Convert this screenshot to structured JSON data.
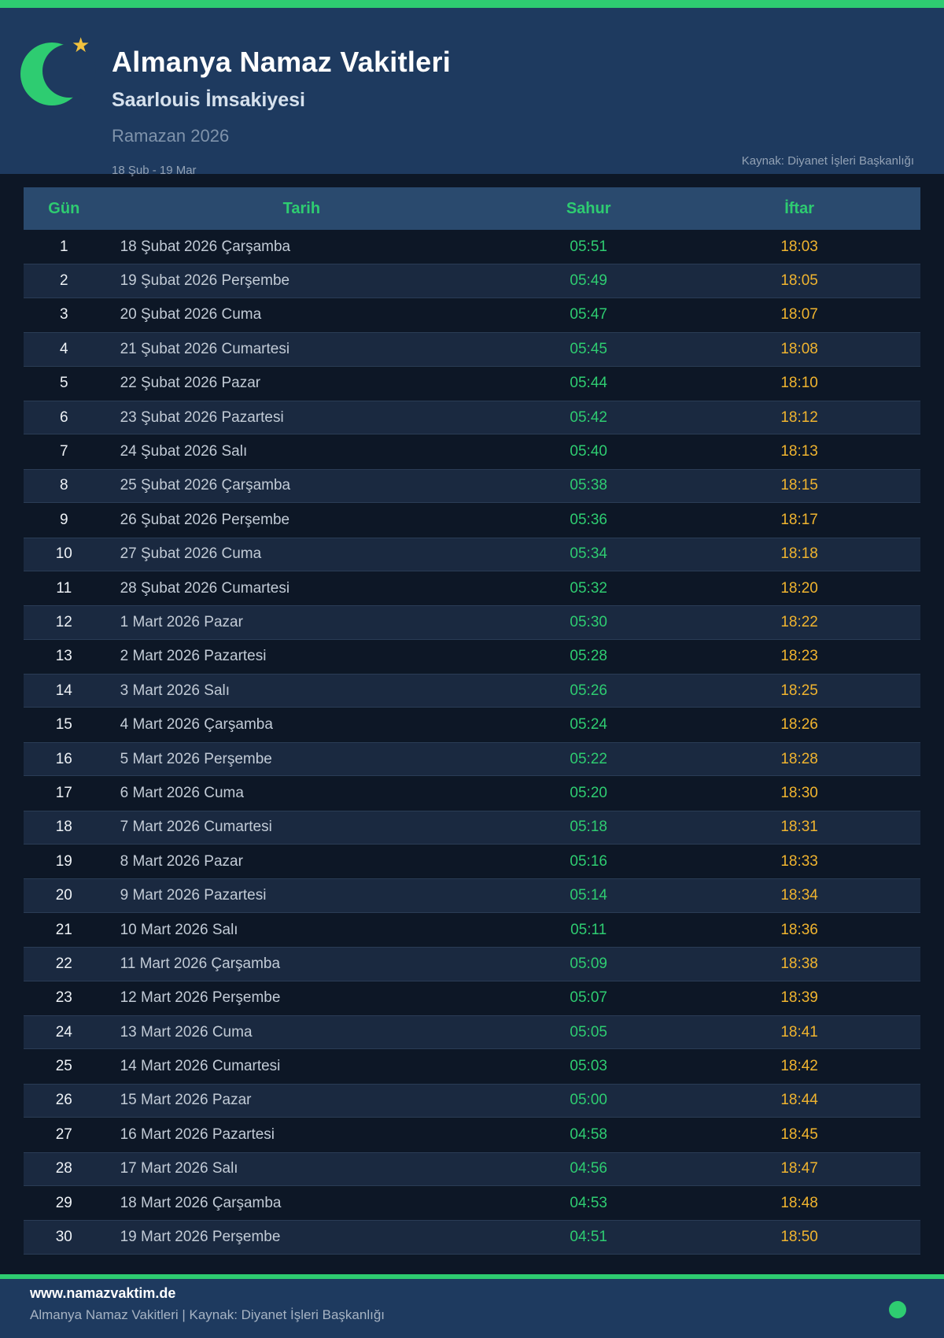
{
  "header": {
    "title": "Almanya Namaz Vakitleri",
    "subtitle": "Saarlouis İmsakiyesi",
    "period": "Ramazan 2026",
    "date_range": "18 Şub - 19 Mar",
    "source": "Kaynak: Diyanet İşleri Başkanlığı",
    "icon": "crescent-moon-with-star",
    "star_glyph": "★"
  },
  "colors": {
    "accent_green": "#2ecc71",
    "accent_gold": "#f0b42f",
    "header_bg": "#1e3a5f",
    "page_bg": "#0d1726",
    "table_header_bg": "#2a4a6e",
    "row_alt_bg": "#1a2940"
  },
  "table": {
    "columns": [
      "Gün",
      "Tarih",
      "Sahur",
      "İftar"
    ],
    "rows": [
      {
        "day": "1",
        "date": "18 Şubat 2026 Çarşamba",
        "sahur": "05:51",
        "iftar": "18:03"
      },
      {
        "day": "2",
        "date": "19 Şubat 2026 Perşembe",
        "sahur": "05:49",
        "iftar": "18:05"
      },
      {
        "day": "3",
        "date": "20 Şubat 2026 Cuma",
        "sahur": "05:47",
        "iftar": "18:07"
      },
      {
        "day": "4",
        "date": "21 Şubat 2026 Cumartesi",
        "sahur": "05:45",
        "iftar": "18:08"
      },
      {
        "day": "5",
        "date": "22 Şubat 2026 Pazar",
        "sahur": "05:44",
        "iftar": "18:10"
      },
      {
        "day": "6",
        "date": "23 Şubat 2026 Pazartesi",
        "sahur": "05:42",
        "iftar": "18:12"
      },
      {
        "day": "7",
        "date": "24 Şubat 2026 Salı",
        "sahur": "05:40",
        "iftar": "18:13"
      },
      {
        "day": "8",
        "date": "25 Şubat 2026 Çarşamba",
        "sahur": "05:38",
        "iftar": "18:15"
      },
      {
        "day": "9",
        "date": "26 Şubat 2026 Perşembe",
        "sahur": "05:36",
        "iftar": "18:17"
      },
      {
        "day": "10",
        "date": "27 Şubat 2026 Cuma",
        "sahur": "05:34",
        "iftar": "18:18"
      },
      {
        "day": "11",
        "date": "28 Şubat 2026 Cumartesi",
        "sahur": "05:32",
        "iftar": "18:20"
      },
      {
        "day": "12",
        "date": "1 Mart 2026 Pazar",
        "sahur": "05:30",
        "iftar": "18:22"
      },
      {
        "day": "13",
        "date": "2 Mart 2026 Pazartesi",
        "sahur": "05:28",
        "iftar": "18:23"
      },
      {
        "day": "14",
        "date": "3 Mart 2026 Salı",
        "sahur": "05:26",
        "iftar": "18:25"
      },
      {
        "day": "15",
        "date": "4 Mart 2026 Çarşamba",
        "sahur": "05:24",
        "iftar": "18:26"
      },
      {
        "day": "16",
        "date": "5 Mart 2026 Perşembe",
        "sahur": "05:22",
        "iftar": "18:28"
      },
      {
        "day": "17",
        "date": "6 Mart 2026 Cuma",
        "sahur": "05:20",
        "iftar": "18:30"
      },
      {
        "day": "18",
        "date": "7 Mart 2026 Cumartesi",
        "sahur": "05:18",
        "iftar": "18:31"
      },
      {
        "day": "19",
        "date": "8 Mart 2026 Pazar",
        "sahur": "05:16",
        "iftar": "18:33"
      },
      {
        "day": "20",
        "date": "9 Mart 2026 Pazartesi",
        "sahur": "05:14",
        "iftar": "18:34"
      },
      {
        "day": "21",
        "date": "10 Mart 2026 Salı",
        "sahur": "05:11",
        "iftar": "18:36"
      },
      {
        "day": "22",
        "date": "11 Mart 2026 Çarşamba",
        "sahur": "05:09",
        "iftar": "18:38"
      },
      {
        "day": "23",
        "date": "12 Mart 2026 Perşembe",
        "sahur": "05:07",
        "iftar": "18:39"
      },
      {
        "day": "24",
        "date": "13 Mart 2026 Cuma",
        "sahur": "05:05",
        "iftar": "18:41"
      },
      {
        "day": "25",
        "date": "14 Mart 2026 Cumartesi",
        "sahur": "05:03",
        "iftar": "18:42"
      },
      {
        "day": "26",
        "date": "15 Mart 2026 Pazar",
        "sahur": "05:00",
        "iftar": "18:44"
      },
      {
        "day": "27",
        "date": "16 Mart 2026 Pazartesi",
        "sahur": "04:58",
        "iftar": "18:45"
      },
      {
        "day": "28",
        "date": "17 Mart 2026 Salı",
        "sahur": "04:56",
        "iftar": "18:47"
      },
      {
        "day": "29",
        "date": "18 Mart 2026 Çarşamba",
        "sahur": "04:53",
        "iftar": "18:48"
      },
      {
        "day": "30",
        "date": "19 Mart 2026 Perşembe",
        "sahur": "04:51",
        "iftar": "18:50"
      }
    ]
  },
  "footer": {
    "website": "www.namazvaktim.de",
    "tagline": "Almanya Namaz Vakitleri | Kaynak: Diyanet İşleri Başkanlığı",
    "status_dot": "green-dot"
  }
}
